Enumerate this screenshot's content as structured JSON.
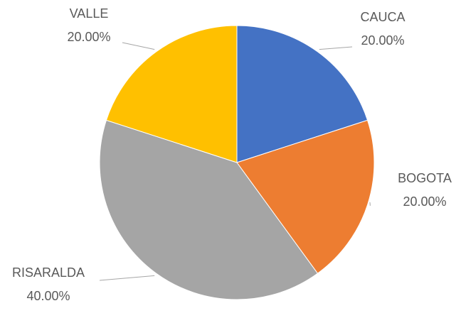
{
  "chart_data": {
    "type": "pie",
    "categories": [
      "CAUCA",
      "BOGOTA",
      "RISARALDA",
      "VALLE"
    ],
    "values": [
      20,
      20,
      40,
      20
    ],
    "value_labels": [
      "20.00%",
      "20.00%",
      "40.00%",
      "20.00%"
    ],
    "colors": [
      "#4472c4",
      "#ed7d31",
      "#a5a5a5",
      "#ffc000"
    ]
  }
}
